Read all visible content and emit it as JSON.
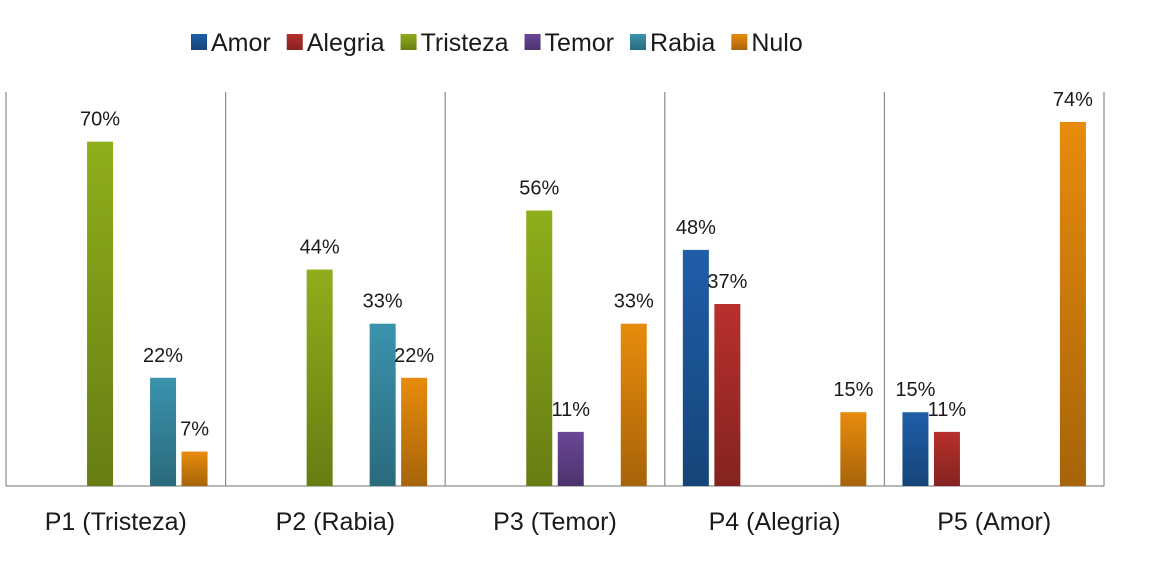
{
  "chart_data": {
    "type": "bar",
    "categories": [
      "P1  (Tristeza)",
      "P2 (Rabia)",
      "P3 (Temor)",
      "P4 (Alegria)",
      "P5 (Amor)"
    ],
    "series": [
      {
        "name": "Amor",
        "color": "#1f5ea8",
        "values": [
          null,
          null,
          null,
          48,
          15
        ],
        "labels": [
          "",
          "",
          "",
          "48%",
          "15%"
        ]
      },
      {
        "name": "Alegria",
        "color": "#b8302c",
        "values": [
          null,
          null,
          null,
          37,
          11
        ],
        "labels": [
          "",
          "",
          "",
          "37%",
          "11%"
        ]
      },
      {
        "name": "Tristeza",
        "color": "#8fae1b",
        "values": [
          70,
          44,
          56,
          null,
          null
        ],
        "labels": [
          "70%",
          "44%",
          "56%",
          "",
          ""
        ]
      },
      {
        "name": "Temor",
        "color": "#6a4796",
        "values": [
          null,
          null,
          11,
          null,
          null
        ],
        "labels": [
          "",
          "",
          "11%",
          "",
          ""
        ]
      },
      {
        "name": "Rabia",
        "color": "#3a93ad",
        "values": [
          22,
          33,
          null,
          null,
          null
        ],
        "labels": [
          "22%",
          "33%",
          "",
          "",
          ""
        ]
      },
      {
        "name": "Nulo",
        "color": "#e88b0c",
        "values": [
          7,
          22,
          33,
          15,
          74
        ],
        "labels": [
          "7%",
          "22%",
          "33%",
          "15%",
          "74%"
        ]
      }
    ],
    "ylim": [
      0,
      80
    ],
    "legend_position": "top",
    "grid": false,
    "category_separators": true
  }
}
